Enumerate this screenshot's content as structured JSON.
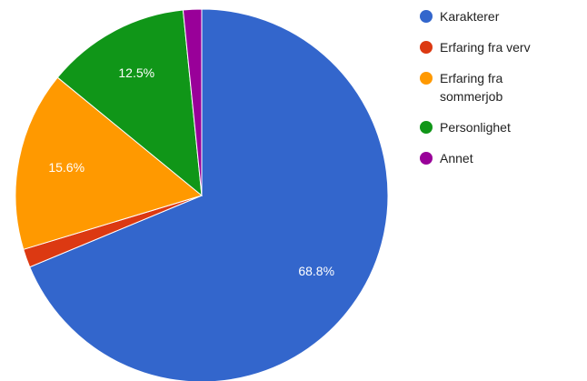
{
  "chart_data": {
    "type": "pie",
    "categories": [
      "Karakterer",
      "Erfaring fra verv",
      "Erfaring fra sommerjob",
      "Personlighet",
      "Annet"
    ],
    "values": [
      68.8,
      1.6,
      15.6,
      12.5,
      1.6
    ],
    "value_labels": [
      "68.8%",
      null,
      "15.6%",
      "12.5%",
      null
    ],
    "colors": [
      "#3366cc",
      "#dc3912",
      "#ff9900",
      "#109618",
      "#990099"
    ],
    "legend": "right"
  }
}
